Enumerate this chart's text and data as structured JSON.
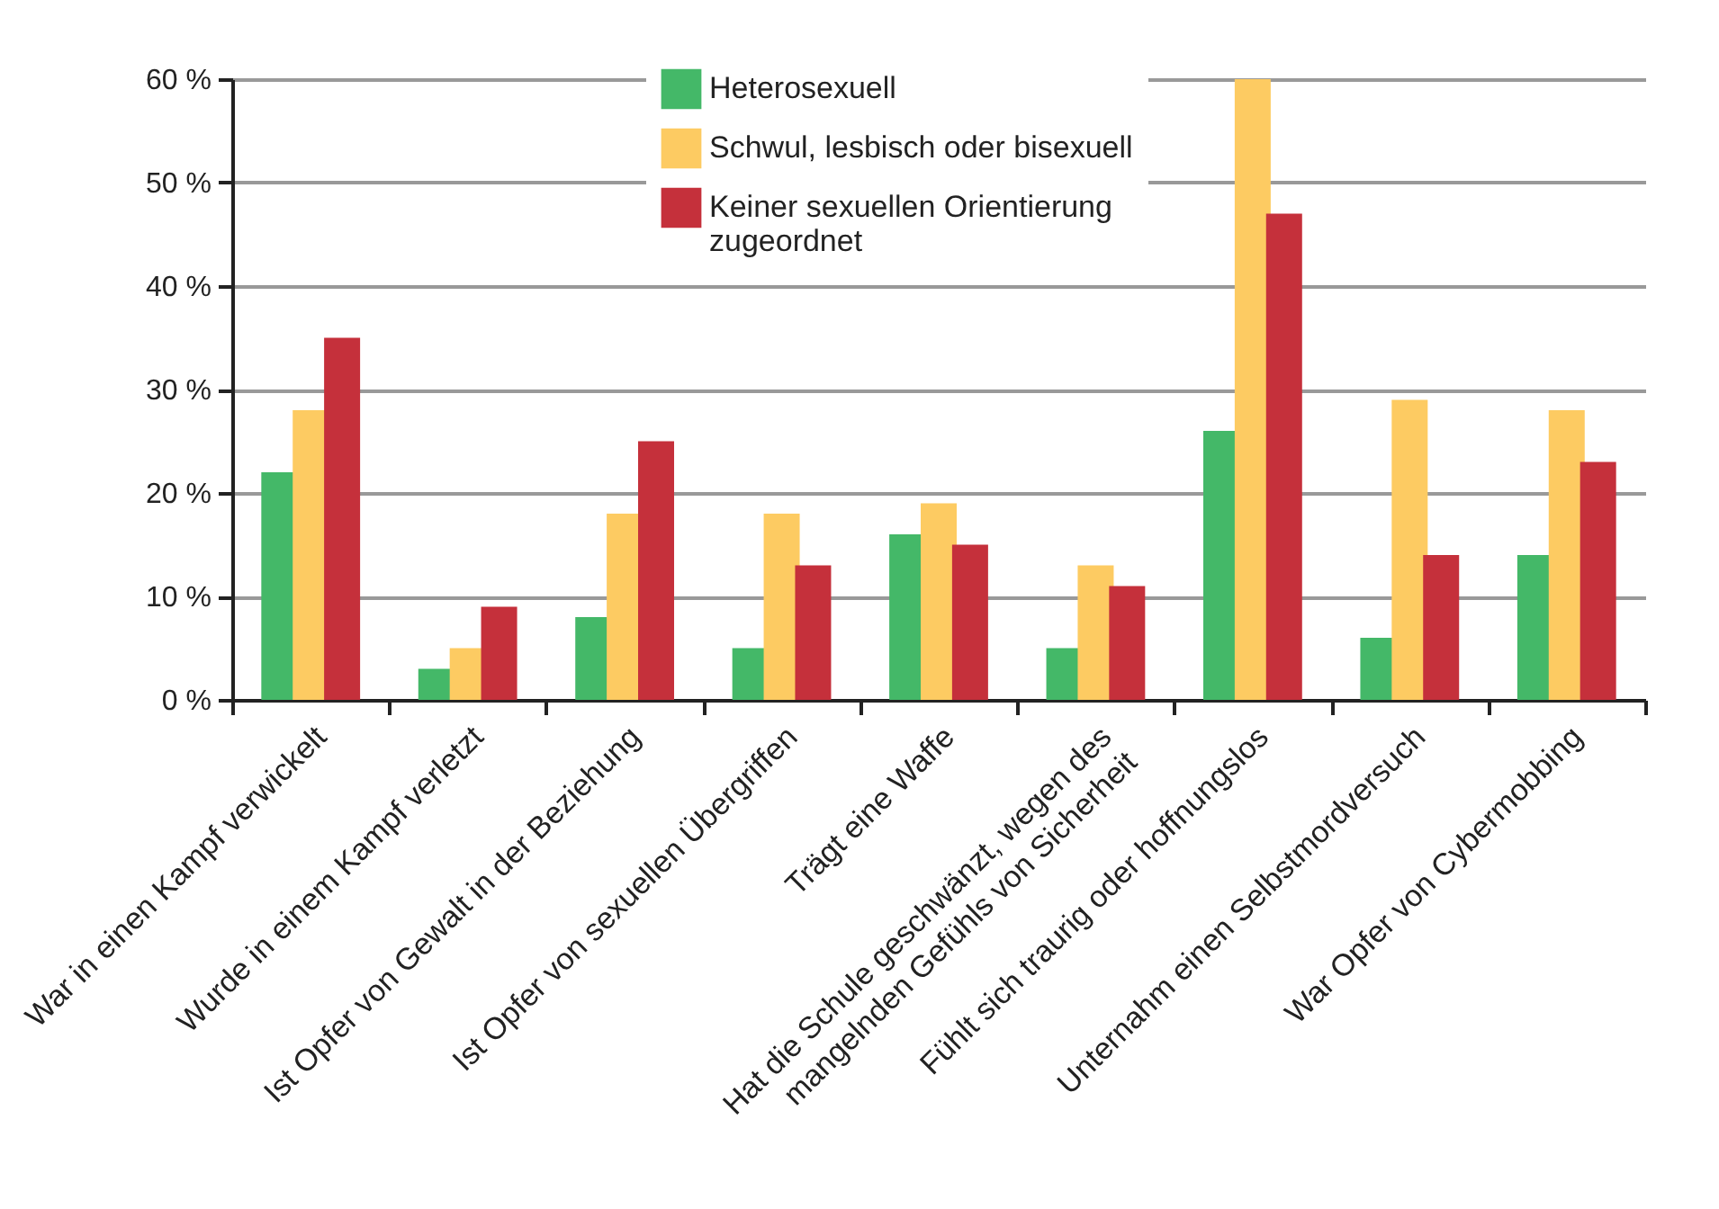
{
  "chart_data": {
    "type": "bar",
    "categories": [
      "War in einen Kampf verwickelt",
      "Wurde in einem Kampf verletzt",
      "Ist Opfer von Gewalt in der Beziehung",
      "Ist Opfer von sexuellen Übergriffen",
      "Trägt eine Waffe",
      "Hat die Schule geschwänzt, wegen des mangelnden Gefühls von Sicherheit",
      "Fühlt sich traurig oder hoffnungslos",
      "Unternahm einen Selbstmordversuch",
      "War Opfer von Cybermobbing"
    ],
    "series": [
      {
        "name": "Heterosexuell",
        "color": "#44b868",
        "values": [
          22,
          3,
          8,
          5,
          16,
          5,
          26,
          6,
          14
        ]
      },
      {
        "name": "Schwul, lesbisch oder bisexuell",
        "color": "#fdcb62",
        "values": [
          28,
          5,
          18,
          18,
          19,
          13,
          60,
          29,
          28
        ]
      },
      {
        "name": "Keiner sexuellen Orientierung zugeordnet",
        "color": "#c5303b",
        "values": [
          35,
          9,
          25,
          13,
          15,
          11,
          47,
          14,
          23
        ]
      }
    ],
    "ylim": [
      0,
      60
    ],
    "yticks": [
      {
        "value": 0,
        "label": "0 %"
      },
      {
        "value": 10,
        "label": "10 %"
      },
      {
        "value": 20,
        "label": "20 %"
      },
      {
        "value": 30,
        "label": "30 %"
      },
      {
        "value": 40,
        "label": "40 %"
      },
      {
        "value": 50,
        "label": "50 %"
      },
      {
        "value": 60,
        "label": "60 %"
      }
    ],
    "grid": "y",
    "legend": "top"
  }
}
